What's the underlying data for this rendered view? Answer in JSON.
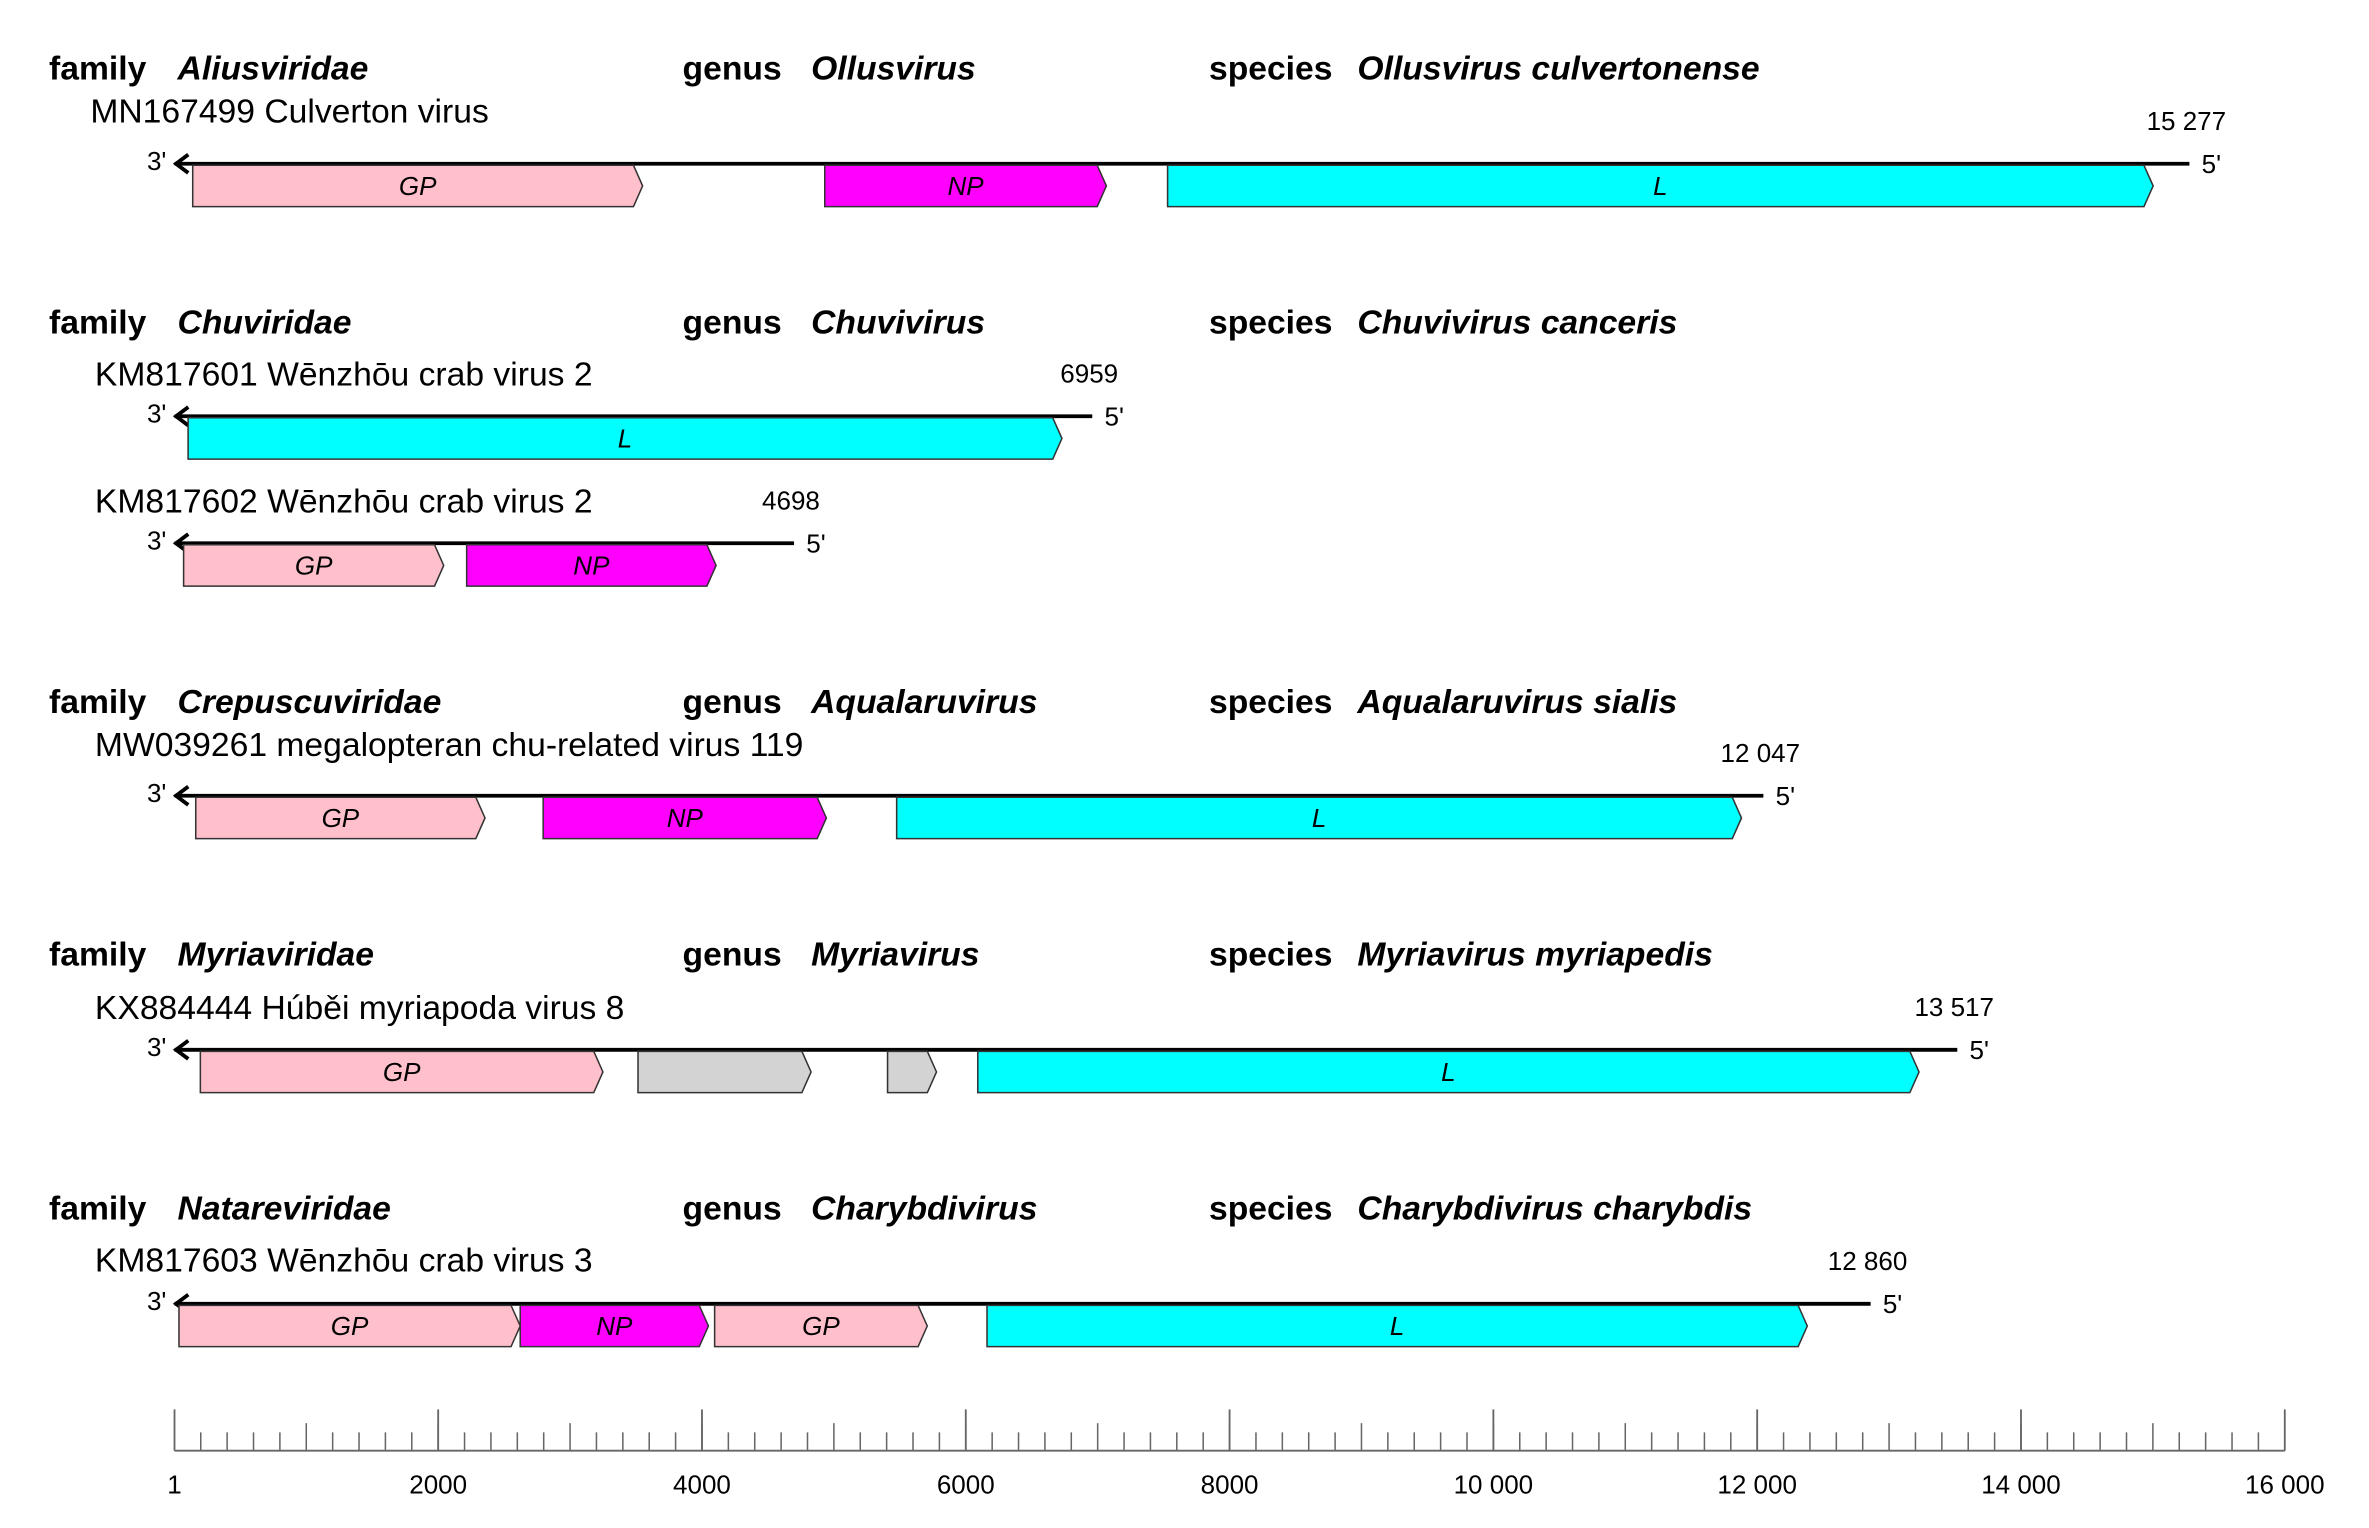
{
  "rank_labels": {
    "family": "family",
    "genus": "genus",
    "species": "species"
  },
  "end_labels": {
    "three": "3'",
    "five": "5'"
  },
  "groups": [
    {
      "family": "Aliusviridae",
      "genus": "Ollusvirus",
      "species": "Ollusvirus culvertonense",
      "segments": [
        {
          "name": "MN167499 Culverton virus",
          "length": {
            "value": 15277,
            "label": "15 277"
          },
          "genes": [
            {
              "label": "GP",
              "start": 139,
              "end": 3550,
              "color": "#ffc0cb"
            },
            {
              "label": "NP",
              "start": 4931,
              "end": 7066,
              "color": "#ff00ff"
            },
            {
              "label": "L",
              "start": 7530,
              "end": 15002,
              "color": "#00ffff"
            }
          ]
        }
      ]
    },
    {
      "family": "Chuviridae",
      "genus": "Chuvivirus",
      "species": "Chuvivirus canceris",
      "segments": [
        {
          "name": "KM817601 Wēnzhōu crab virus 2",
          "length": 6959,
          "genes": [
            {
              "label": "L",
              "start": 104,
              "end": 6729,
              "color": "#00ffff"
            }
          ]
        },
        {
          "name": "KM817602 Wēnzhōu crab virus 2",
          "length": 4698,
          "genes": [
            {
              "label": "GP",
              "start": 70,
              "end": 2042,
              "color": "#ffc0cb"
            },
            {
              "label": "NP",
              "start": 2216,
              "end": 4107,
              "color": "#ff00ff"
            }
          ]
        }
      ]
    },
    {
      "family": "Crepuscuviridae",
      "genus": "Aqualaruvirus",
      "species": "Aqualaruvirus sialis",
      "segments": [
        {
          "name": "MW039261 megalopteran chu-related virus 119",
          "length": {
            "value": 12047,
            "label": "12 047"
          },
          "genes": [
            {
              "label": "GP",
              "start": 162,
              "end": 2355,
              "color": "#ffc0cb"
            },
            {
              "label": "NP",
              "start": 2796,
              "end": 4943,
              "color": "#ff00ff"
            },
            {
              "label": "L",
              "start": 5476,
              "end": 11881,
              "color": "#00ffff"
            }
          ]
        }
      ]
    },
    {
      "family": "Myriaviridae",
      "genus": "Myriavirus",
      "species": "Myriavirus myriapedis",
      "segments": [
        {
          "name": "KX884444 Húběi myriapoda virus 8",
          "length": {
            "value": 13517,
            "label": "13 517"
          },
          "genes": [
            {
              "label": "GP",
              "start": 197,
              "end": 3249,
              "color": "#ffc0cb"
            },
            {
              "start": 3515,
              "end": 4827,
              "color": "#d3d3d3"
            },
            {
              "start": 5407,
              "end": 5778,
              "color": "#d3d3d3"
            },
            {
              "label": "L",
              "start": 6091,
              "end": 13227,
              "color": "#00ffff"
            }
          ]
        }
      ]
    },
    {
      "family": "Natareviridae",
      "genus": "Charybdivirus",
      "species": "Charybdivirus charybdis",
      "segments": [
        {
          "name": "KM817603 Wēnzhōu crab virus 3",
          "length": {
            "value": 12860,
            "label": "12 860"
          },
          "genes": [
            {
              "label": "GP",
              "start": 35,
              "end": 2622,
              "color": "#ffc0cb"
            },
            {
              "label": "NP",
              "start": 2622,
              "end": 4049,
              "color": "#ff00ff"
            },
            {
              "label": "GP",
              "start": 4096,
              "end": 5708,
              "color": "#ffc0cb"
            },
            {
              "label": "L",
              "start": 6161,
              "end": 12380,
              "color": "#00ffff"
            }
          ]
        }
      ]
    }
  ],
  "scale": {
    "range": [
      1,
      16000
    ],
    "minor_step": 200,
    "mid_step": 1000,
    "ticks": [
      1,
      2000,
      4000,
      6000,
      8000,
      {
        "value": 10000,
        "label": "10 000"
      },
      {
        "value": 12000,
        "label": "12 000"
      },
      {
        "value": 14000,
        "label": "14 000"
      },
      {
        "value": 16000,
        "label": "16 000"
      }
    ]
  }
}
